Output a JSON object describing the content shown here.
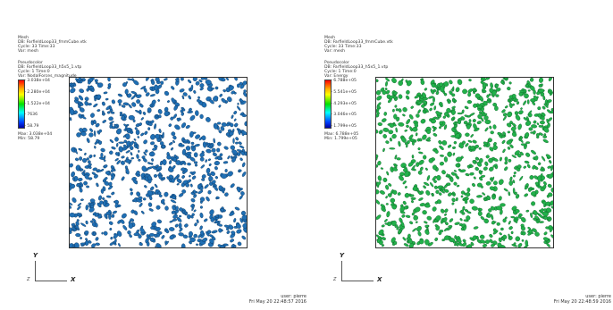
{
  "panels": [
    {
      "mesh_info": {
        "title": "Mesh",
        "db": "DB: FarfieldLoop33_fmmCube.vtk",
        "cycle": "Cycle: 33      Time:33",
        "var": "Var: mesh"
      },
      "pseudocolor": {
        "title": "Pseudocolor",
        "db": "DB: FarfieldLoop33_h5x5_1.vtp",
        "cycle": "Cycle: 1      Time:0",
        "var": "Var: NodalForces_magnitude"
      },
      "legend_ticks": [
        "3.038e+04",
        "2.280e+04",
        "1.522e+04",
        "7636",
        "58.79"
      ],
      "max_label": "Max: 3.038e+04",
      "min_label": "Min: 58.79",
      "particle_color": "#1f6fb4",
      "particle_edge": "#0a2f55",
      "axis": {
        "y": "Y",
        "z": "Z",
        "x": "X"
      },
      "user": "user: pierre",
      "timestamp": "Fri May 20 22:48:57 2016"
    },
    {
      "mesh_info": {
        "title": "Mesh",
        "db": "DB: FarfieldLoop33_fmmCube.vtk",
        "cycle": "Cycle: 33      Time:33",
        "var": "Var: mesh"
      },
      "pseudocolor": {
        "title": "Pseudocolor",
        "db": "DB: FarfieldLoop33_h5x5_1.vtp",
        "cycle": "Cycle: 1      Time:0",
        "var": "Var: Energy"
      },
      "legend_ticks": [
        "6.788e+05",
        "5.541e+05",
        "4.293e+05",
        "3.046e+05",
        "1.799e+05"
      ],
      "max_label": "Max: 6.788e+05",
      "min_label": "Min: 1.799e+05",
      "particle_color": "#22b04a",
      "particle_edge": "#0b5a22",
      "axis": {
        "y": "Y",
        "z": "Z",
        "x": "X"
      },
      "user": "user: pierre",
      "timestamp": "Fri May 20 22:48:59 2016"
    }
  ]
}
